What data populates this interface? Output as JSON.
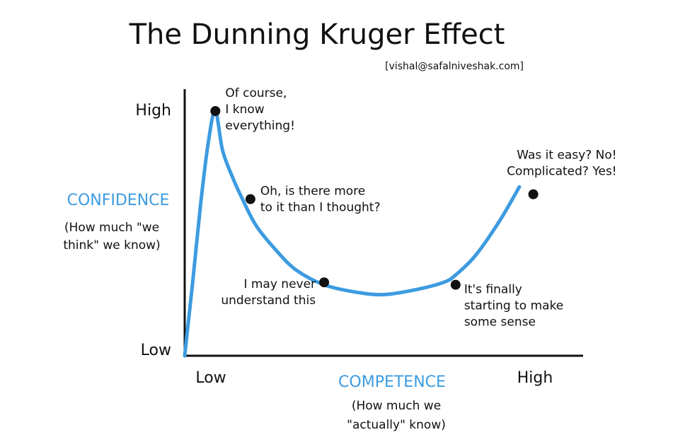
{
  "chart_data": {
    "type": "line",
    "title": "The Dunning Kruger Effect",
    "subtitle": "[vishal@safalniveshak.com]",
    "ylabel": "CONFIDENCE",
    "ylabel_note": [
      "(How much \"we",
      "think\" we know)"
    ],
    "xlabel": "COMPETENCE",
    "xlabel_note": [
      "(How much we",
      "\"actually\" know)"
    ],
    "y_ticks": {
      "high": "High",
      "low": "Low"
    },
    "x_ticks": {
      "low": "Low",
      "high": "High"
    },
    "xlim": [
      0,
      100
    ],
    "ylim": [
      0,
      100
    ],
    "grid": false,
    "colors": {
      "curve": "#3d9be0",
      "axis": "#111111",
      "accent_text": "#3d9be0",
      "text": "#111111",
      "point": "#111111"
    },
    "series": [
      {
        "values": [
          {
            "x": 0,
            "y": 0
          },
          {
            "x": 2,
            "y": 30
          },
          {
            "x": 4,
            "y": 62
          },
          {
            "x": 6,
            "y": 88
          },
          {
            "x": 7.7,
            "y": 100
          },
          {
            "x": 9.5,
            "y": 84
          },
          {
            "x": 12,
            "y": 73
          },
          {
            "x": 14.5,
            "y": 64
          },
          {
            "x": 18,
            "y": 53
          },
          {
            "x": 23,
            "y": 43
          },
          {
            "x": 28,
            "y": 35
          },
          {
            "x": 35,
            "y": 29
          },
          {
            "x": 43,
            "y": 26
          },
          {
            "x": 50,
            "y": 25
          },
          {
            "x": 58,
            "y": 27
          },
          {
            "x": 65,
            "y": 30
          },
          {
            "x": 68,
            "y": 33
          },
          {
            "x": 73,
            "y": 41
          },
          {
            "x": 79,
            "y": 55
          },
          {
            "x": 84,
            "y": 69
          }
        ]
      }
    ],
    "points": [
      {
        "x": 7.7,
        "y": 100,
        "label": [
          "Of course,",
          "I know",
          "everything!"
        ]
      },
      {
        "x": 16.5,
        "y": 64,
        "label": [
          "Oh, is there more",
          "to it than I thought?"
        ]
      },
      {
        "x": 35,
        "y": 30,
        "label": [
          "I may never",
          "understand this"
        ]
      },
      {
        "x": 68,
        "y": 29,
        "label": [
          "It's finally",
          "starting to make",
          "some sense"
        ]
      },
      {
        "x": 87.5,
        "y": 66,
        "label": [
          "Was it easy? No!",
          "Complicated? Yes!"
        ]
      }
    ]
  }
}
